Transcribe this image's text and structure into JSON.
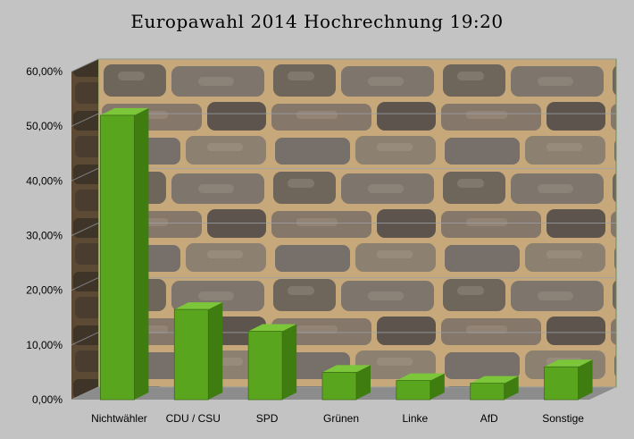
{
  "chart_data": {
    "type": "bar",
    "title": "Europawahl 2014 Hochrechnung 19:20",
    "categories": [
      "Nichtwähler",
      "CDU / CSU",
      "SPD",
      "Grünen",
      "Linke",
      "AfD",
      "Sonstige"
    ],
    "values": [
      52.0,
      16.5,
      12.5,
      5.0,
      3.5,
      3.0,
      6.0
    ],
    "yticks": [
      "0,00%",
      "10,00%",
      "20,00%",
      "30,00%",
      "40,00%",
      "50,00%",
      "60,00%"
    ],
    "ylim": [
      0,
      60
    ],
    "grid": true,
    "bar_color": "#5aa51e",
    "bar_side_color": "#3f7d10",
    "bar_top_color": "#7cc63a",
    "background": "stone wall texture"
  }
}
